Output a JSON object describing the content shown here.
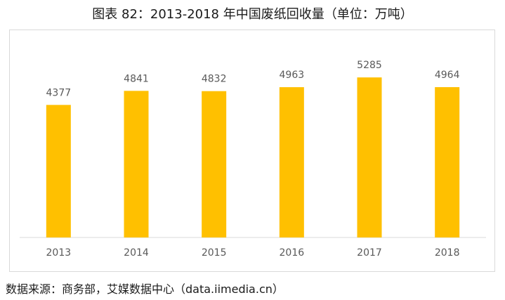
{
  "title": "图表 82：2013-2018 年中国废纸回收量（单位：万吨）",
  "source": "数据来源：商务部，艾媒数据中心（data.iimedia.cn）",
  "colors": {
    "bar": "#FFC000",
    "axis": "#d9d9d9"
  },
  "chart_data": {
    "type": "bar",
    "title": "图表 82：2013-2018 年中国废纸回收量（单位：万吨）",
    "xlabel": "",
    "ylabel": "",
    "categories": [
      "2013",
      "2014",
      "2015",
      "2016",
      "2017",
      "2018"
    ],
    "values": [
      4377,
      4841,
      4832,
      4963,
      5285,
      4964
    ],
    "ylim": [
      0,
      5800
    ],
    "grid": false,
    "legend": "none",
    "data_labels": true
  }
}
